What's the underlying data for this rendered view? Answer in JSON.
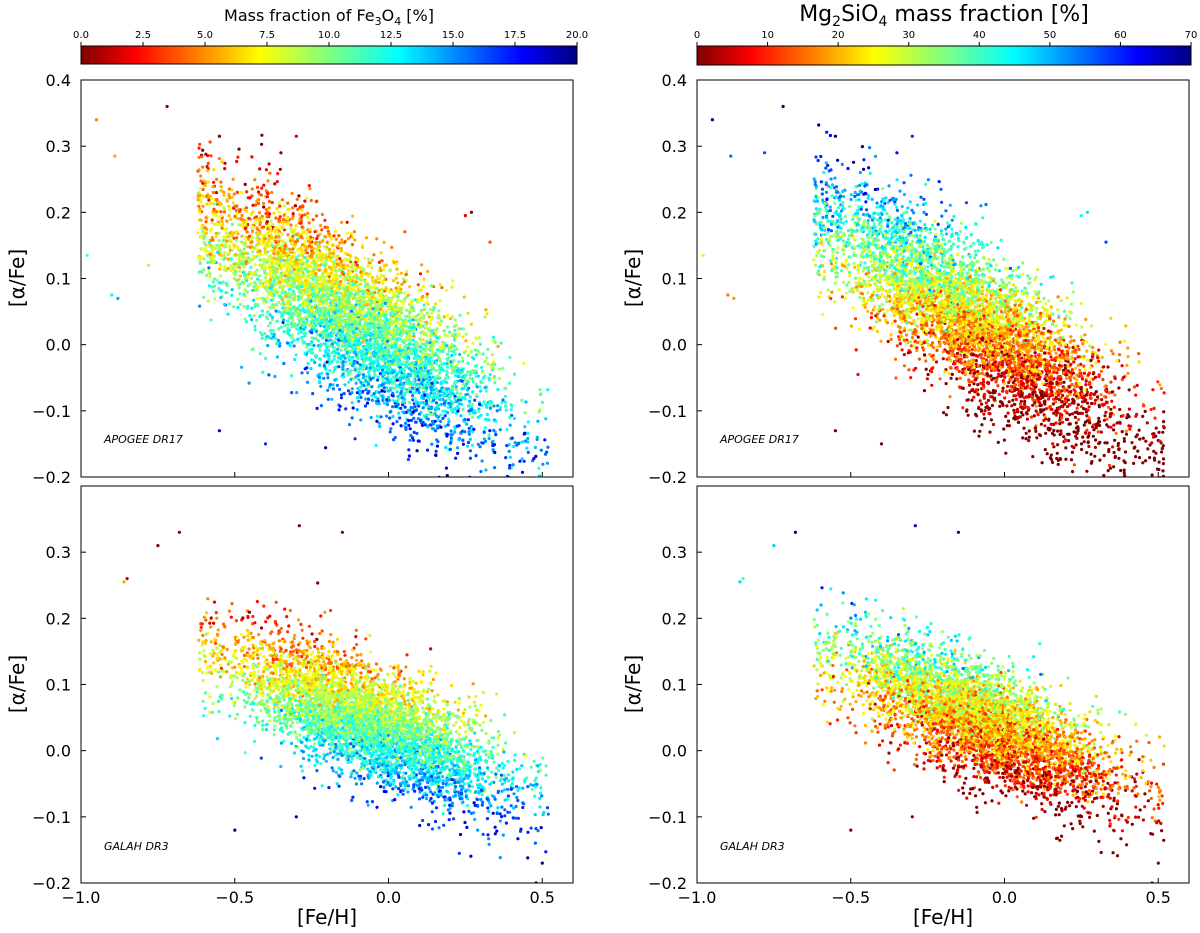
{
  "chart_data": [
    {
      "type": "scatter",
      "panel": "top-left",
      "survey_label": "APOGEE DR17",
      "xlabel": "[Fe/H]",
      "ylabel": "[α/Fe]",
      "xlim": [
        -1.0,
        0.6
      ],
      "ylim": [
        -0.2,
        0.4
      ],
      "xticks": [
        "−1.0",
        "−0.5",
        "0.0",
        "0.5"
      ],
      "xtick_values": [
        -1.0,
        -0.5,
        0.0,
        0.5
      ],
      "yticks": [
        "−0.2",
        "−0.1",
        "0.0",
        "0.1",
        "0.2",
        "0.3",
        "0.4"
      ],
      "ytick_values": [
        -0.2,
        -0.1,
        0.0,
        0.1,
        0.2,
        0.3,
        0.4
      ],
      "show_xticklabels": false,
      "color_variable": "Fe3O4",
      "cloud": {
        "n_points": 5200,
        "mean_feh": -0.12,
        "sd_feh": 0.24,
        "feh_min": -0.62,
        "feh_max": 0.52,
        "slope": -0.3,
        "intercept": 0.005,
        "sd_alpha": 0.055,
        "color_base": 10.8,
        "color_slope": 6.5,
        "color_resid": -40,
        "color_noise": 1.8
      },
      "outliers": [
        [
          -0.95,
          0.34
        ],
        [
          -0.89,
          0.285
        ],
        [
          -0.72,
          0.36
        ],
        [
          -0.78,
          0.12
        ],
        [
          -0.9,
          0.075
        ],
        [
          -0.88,
          0.07
        ],
        [
          -0.98,
          0.135
        ],
        [
          -0.55,
          0.315
        ],
        [
          -0.3,
          0.315
        ],
        [
          -0.35,
          0.29
        ],
        [
          0.27,
          0.2
        ],
        [
          0.25,
          0.195
        ],
        [
          0.33,
          0.155
        ],
        [
          -0.4,
          -0.15
        ],
        [
          -0.55,
          -0.13
        ]
      ]
    },
    {
      "type": "scatter",
      "panel": "top-right",
      "survey_label": "APOGEE DR17",
      "xlabel": "[Fe/H]",
      "ylabel": "[α/Fe]",
      "xlim": [
        -1.0,
        0.6
      ],
      "ylim": [
        -0.2,
        0.4
      ],
      "xticks": [
        "−1.0",
        "−0.5",
        "0.0",
        "0.5"
      ],
      "xtick_values": [
        -1.0,
        -0.5,
        0.0,
        0.5
      ],
      "yticks": [
        "−0.2",
        "−0.1",
        "0.0",
        "0.1",
        "0.2",
        "0.3",
        "0.4"
      ],
      "ytick_values": [
        -0.2,
        -0.1,
        0.0,
        0.1,
        0.2,
        0.3,
        0.4
      ],
      "show_xticklabels": false,
      "color_variable": "Mg2SiO4",
      "cloud": {
        "n_points": 5200,
        "mean_feh": -0.12,
        "sd_feh": 0.24,
        "feh_min": -0.62,
        "feh_max": 0.52,
        "slope": -0.3,
        "intercept": 0.005,
        "sd_alpha": 0.055,
        "color_base": 18,
        "color_slope": -40,
        "color_resid": 160,
        "color_noise": 7
      },
      "outliers": [
        [
          -0.95,
          0.34
        ],
        [
          -0.89,
          0.285
        ],
        [
          -0.72,
          0.36
        ],
        [
          -0.78,
          0.29
        ],
        [
          -0.9,
          0.075
        ],
        [
          -0.88,
          0.07
        ],
        [
          -0.98,
          0.135
        ],
        [
          -0.55,
          0.315
        ],
        [
          -0.3,
          0.315
        ],
        [
          -0.35,
          0.29
        ],
        [
          0.27,
          0.2
        ],
        [
          0.25,
          0.195
        ],
        [
          0.33,
          0.155
        ],
        [
          -0.4,
          -0.15
        ],
        [
          -0.55,
          -0.13
        ]
      ]
    },
    {
      "type": "scatter",
      "panel": "bottom-left",
      "survey_label": "GALAH DR3",
      "xlabel": "[Fe/H]",
      "ylabel": "[α/Fe]",
      "xlim": [
        -1.0,
        0.6
      ],
      "ylim": [
        -0.2,
        0.4
      ],
      "xticks": [
        "−1.0",
        "−0.5",
        "0.0",
        "0.5"
      ],
      "xtick_values": [
        -1.0,
        -0.5,
        0.0,
        0.5
      ],
      "yticks": [
        "−0.2",
        "−0.1",
        "0.0",
        "0.1",
        "0.2",
        "0.3"
      ],
      "ytick_values": [
        -0.2,
        -0.1,
        0.0,
        0.1,
        0.2,
        0.3
      ],
      "show_xticklabels": true,
      "color_variable": "Fe3O4",
      "cloud": {
        "n_points": 4800,
        "mean_feh": -0.08,
        "sd_feh": 0.22,
        "feh_min": -0.62,
        "feh_max": 0.52,
        "slope": -0.2,
        "intercept": 0.03,
        "sd_alpha": 0.042,
        "color_base": 10.5,
        "color_slope": 6.5,
        "color_resid": -50,
        "color_noise": 1.6
      },
      "outliers": [
        [
          -0.85,
          0.26
        ],
        [
          -0.86,
          0.255
        ],
        [
          -0.75,
          0.31
        ],
        [
          -0.68,
          0.33
        ],
        [
          -0.29,
          0.34
        ],
        [
          -0.15,
          0.33
        ],
        [
          0.5,
          -0.17
        ],
        [
          0.48,
          -0.2
        ],
        [
          -0.5,
          -0.12
        ],
        [
          -0.3,
          -0.1
        ]
      ]
    },
    {
      "type": "scatter",
      "panel": "bottom-right",
      "survey_label": "GALAH DR3",
      "xlabel": "[Fe/H]",
      "ylabel": "[α/Fe]",
      "xlim": [
        -1.0,
        0.6
      ],
      "ylim": [
        -0.2,
        0.4
      ],
      "xticks": [
        "−1.0",
        "−0.5",
        "0.0",
        "0.5"
      ],
      "xtick_values": [
        -1.0,
        -0.5,
        0.0,
        0.5
      ],
      "yticks": [
        "−0.2",
        "−0.1",
        "0.0",
        "0.1",
        "0.2",
        "0.3"
      ],
      "ytick_values": [
        -0.2,
        -0.1,
        0.0,
        0.1,
        0.2,
        0.3
      ],
      "show_xticklabels": true,
      "color_variable": "Mg2SiO4",
      "cloud": {
        "n_points": 4800,
        "mean_feh": -0.08,
        "sd_feh": 0.22,
        "feh_min": -0.62,
        "feh_max": 0.52,
        "slope": -0.2,
        "intercept": 0.03,
        "sd_alpha": 0.042,
        "color_base": 20,
        "color_slope": -20,
        "color_resid": 170,
        "color_noise": 7
      },
      "outliers": [
        [
          -0.85,
          0.26
        ],
        [
          -0.86,
          0.255
        ],
        [
          -0.75,
          0.31
        ],
        [
          -0.68,
          0.33
        ],
        [
          -0.29,
          0.34
        ],
        [
          -0.15,
          0.33
        ],
        [
          0.5,
          -0.17
        ],
        [
          0.48,
          -0.2
        ],
        [
          -0.5,
          -0.12
        ],
        [
          -0.3,
          -0.1
        ]
      ]
    }
  ],
  "colorbars": {
    "fe3o4": {
      "title_parts": [
        "Mass fraction of Fe",
        "3",
        "O",
        "4",
        " [%]"
      ],
      "min": 0.0,
      "max": 20.0,
      "ticks": [
        "0.0",
        "2.5",
        "5.0",
        "7.5",
        "10.0",
        "12.5",
        "15.0",
        "17.5",
        "20.0"
      ],
      "tick_values": [
        0.0,
        2.5,
        5.0,
        7.5,
        10.0,
        12.5,
        15.0,
        17.5,
        20.0
      ],
      "colormap": "jet_r"
    },
    "mg2sio4": {
      "title_parts": [
        "Mg",
        "2",
        "SiO",
        "4",
        " mass fraction [%]"
      ],
      "min": 0,
      "max": 70,
      "ticks": [
        "0",
        "10",
        "20",
        "30",
        "40",
        "50",
        "60",
        "70"
      ],
      "tick_values": [
        0,
        10,
        20,
        30,
        40,
        50,
        60,
        70
      ],
      "colormap": "jet_r"
    }
  }
}
